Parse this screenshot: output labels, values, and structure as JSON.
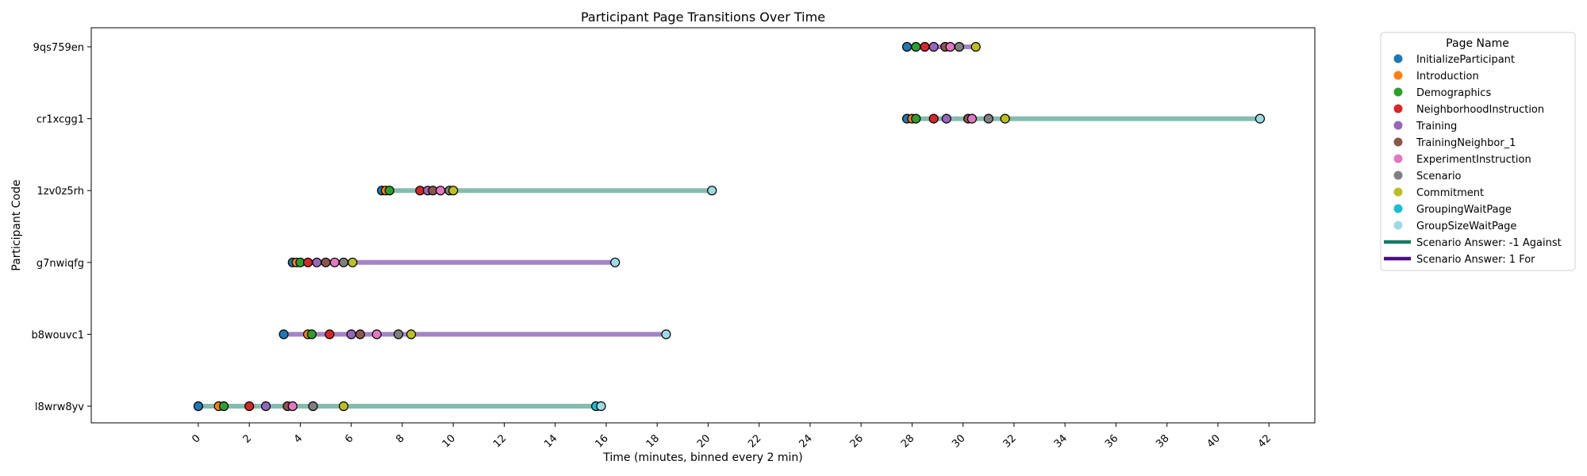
{
  "chart_data": {
    "type": "scatter",
    "title": "Participant Page Transitions Over Time",
    "xlabel": "Time (minutes, binned every 2 min)",
    "ylabel": "Participant Code",
    "xlim": [
      -4.2,
      43.8
    ],
    "x_ticks": [
      "0",
      "2",
      "4",
      "6",
      "8",
      "10",
      "12",
      "14",
      "16",
      "18",
      "20",
      "22",
      "24",
      "26",
      "28",
      "30",
      "32",
      "34",
      "36",
      "38",
      "40",
      "42"
    ],
    "categories": [
      "l8wrw8yv",
      "b8wouvc1",
      "g7nwiqfg",
      "1zv0z5rh",
      "cr1xcgg1",
      "9qs759en"
    ],
    "grid": false,
    "legend": {
      "title": "Page Name",
      "placement": "outside-right",
      "pages": [
        {
          "name": "InitializeParticipant",
          "color": "#1f77b4"
        },
        {
          "name": "Introduction",
          "color": "#ff7f0e"
        },
        {
          "name": "Demographics",
          "color": "#2ca02c"
        },
        {
          "name": "NeighborhoodInstruction",
          "color": "#d62728"
        },
        {
          "name": "Training",
          "color": "#9467bd"
        },
        {
          "name": "TrainingNeighbor_1",
          "color": "#8c564b"
        },
        {
          "name": "ExperimentInstruction",
          "color": "#e377c2"
        },
        {
          "name": "Scenario",
          "color": "#7f7f7f"
        },
        {
          "name": "Commitment",
          "color": "#bcbd22"
        },
        {
          "name": "GroupingWaitPage",
          "color": "#17becf"
        },
        {
          "name": "GroupSizeWaitPage",
          "color": "#9edae5"
        }
      ],
      "answers": [
        {
          "name": "Scenario Answer: -1 Against",
          "color": "#137a63"
        },
        {
          "name": "Scenario Answer: 1 For",
          "color": "#4b0f82"
        }
      ]
    },
    "participants": [
      {
        "code": "l8wrw8yv",
        "answer": "Scenario Answer: -1 Against",
        "line_color": "#85bcb0",
        "points": [
          [
            0,
            "InitializeParticipant"
          ],
          [
            0.8,
            "Introduction"
          ],
          [
            1.0,
            "Demographics"
          ],
          [
            2.0,
            "NeighborhoodInstruction"
          ],
          [
            2.65,
            "Training"
          ],
          [
            3.5,
            "TrainingNeighbor_1"
          ],
          [
            3.7,
            "ExperimentInstruction"
          ],
          [
            4.5,
            "Scenario"
          ],
          [
            5.7,
            "Commitment"
          ],
          [
            15.6,
            "GroupingWaitPage"
          ],
          [
            15.8,
            "GroupSizeWaitPage"
          ]
        ]
      },
      {
        "code": "b8wouvc1",
        "answer": "Scenario Answer: 1 For",
        "line_color": "#a384c4",
        "points": [
          [
            3.35,
            "InitializeParticipant"
          ],
          [
            4.3,
            "Introduction"
          ],
          [
            4.45,
            "Demographics"
          ],
          [
            5.15,
            "NeighborhoodInstruction"
          ],
          [
            6.0,
            "Training"
          ],
          [
            6.35,
            "TrainingNeighbor_1"
          ],
          [
            7.0,
            "ExperimentInstruction"
          ],
          [
            7.85,
            "Scenario"
          ],
          [
            8.35,
            "Commitment"
          ],
          [
            18.35,
            "GroupSizeWaitPage"
          ]
        ]
      },
      {
        "code": "g7nwiqfg",
        "answer": "Scenario Answer: 1 For",
        "line_color": "#a384c4",
        "points": [
          [
            3.7,
            "InitializeParticipant"
          ],
          [
            3.85,
            "Introduction"
          ],
          [
            4.0,
            "Demographics"
          ],
          [
            4.3,
            "NeighborhoodInstruction"
          ],
          [
            4.65,
            "Training"
          ],
          [
            5.0,
            "TrainingNeighbor_1"
          ],
          [
            5.35,
            "ExperimentInstruction"
          ],
          [
            5.7,
            "Scenario"
          ],
          [
            6.05,
            "Commitment"
          ],
          [
            16.35,
            "GroupSizeWaitPage"
          ]
        ]
      },
      {
        "code": "1zv0z5rh",
        "answer": "Scenario Answer: -1 Against",
        "line_color": "#85bcb0",
        "points": [
          [
            7.2,
            "InitializeParticipant"
          ],
          [
            7.35,
            "Introduction"
          ],
          [
            7.5,
            "Demographics"
          ],
          [
            8.7,
            "NeighborhoodInstruction"
          ],
          [
            9.0,
            "Training"
          ],
          [
            9.2,
            "TrainingNeighbor_1"
          ],
          [
            9.5,
            "ExperimentInstruction"
          ],
          [
            9.85,
            "Scenario"
          ],
          [
            10.0,
            "Commitment"
          ],
          [
            20.15,
            "GroupSizeWaitPage"
          ]
        ]
      },
      {
        "code": "cr1xcgg1",
        "answer": "Scenario Answer: -1 Against",
        "line_color": "#85bcb0",
        "points": [
          [
            27.8,
            "InitializeParticipant"
          ],
          [
            28.0,
            "Introduction"
          ],
          [
            28.15,
            "Demographics"
          ],
          [
            28.85,
            "NeighborhoodInstruction"
          ],
          [
            29.35,
            "Training"
          ],
          [
            30.2,
            "TrainingNeighbor_1"
          ],
          [
            30.35,
            "ExperimentInstruction"
          ],
          [
            31.0,
            "Scenario"
          ],
          [
            31.65,
            "Commitment"
          ],
          [
            41.65,
            "GroupSizeWaitPage"
          ]
        ]
      },
      {
        "code": "9qs759en",
        "answer": "Scenario Answer: 1 For",
        "line_color": "#a384c4",
        "points": [
          [
            27.8,
            "InitializeParticipant"
          ],
          [
            28.15,
            "Demographics"
          ],
          [
            28.5,
            "NeighborhoodInstruction"
          ],
          [
            28.85,
            "Training"
          ],
          [
            29.3,
            "TrainingNeighbor_1"
          ],
          [
            29.5,
            "ExperimentInstruction"
          ],
          [
            29.85,
            "Scenario"
          ],
          [
            30.5,
            "Commitment"
          ]
        ]
      }
    ]
  }
}
